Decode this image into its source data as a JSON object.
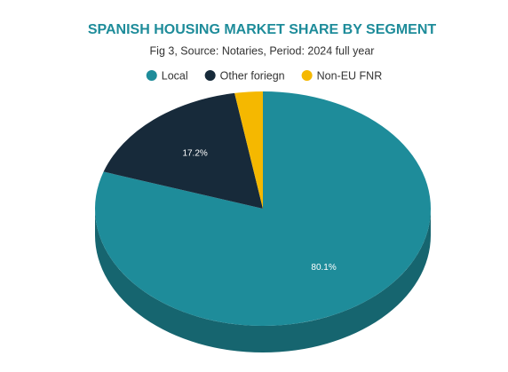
{
  "chart_data": {
    "type": "pie3d",
    "title": "SPANISH HOUSING MARKET SHARE BY SEGMENT",
    "subtitle": "Fig 3, Source: Notaries, Period: 2024 full year",
    "categories": [
      "Local",
      "Other foriegn",
      "Non-EU FNR"
    ],
    "values": [
      80.1,
      17.2,
      2.7
    ],
    "value_labels": [
      "80.1%",
      "17.2%",
      null
    ],
    "colors": [
      "#1e8c9a",
      "#172a3a",
      "#f5b800"
    ],
    "legend": "top"
  }
}
